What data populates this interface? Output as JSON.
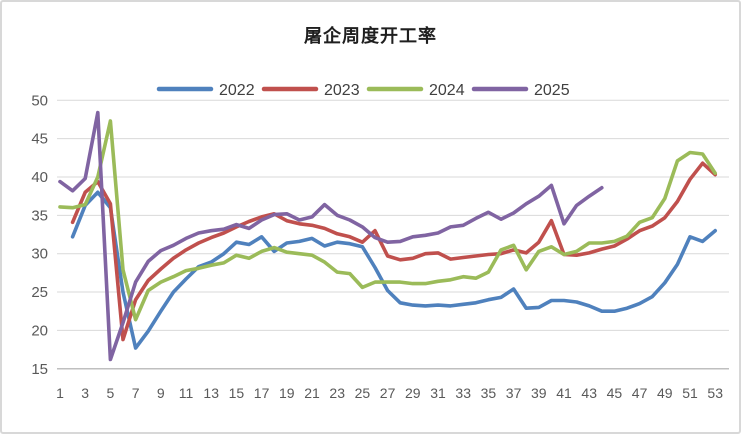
{
  "chart_data": {
    "type": "line",
    "title": "屠企周度开工率",
    "xlabel": "",
    "ylabel": "",
    "ylim": [
      15,
      50
    ],
    "yticks": [
      50,
      45,
      40,
      35,
      30,
      25,
      20,
      15
    ],
    "x_tick_labels": [
      "1",
      "3",
      "5",
      "7",
      "9",
      "11",
      "13",
      "15",
      "17",
      "19",
      "21",
      "23",
      "25",
      "27",
      "29",
      "31",
      "33",
      "35",
      "37",
      "39",
      "41",
      "43",
      "45",
      "47",
      "49",
      "51",
      "53"
    ],
    "x_unit": "week-of-year",
    "x_range": [
      1,
      53
    ],
    "grid": "horizontal",
    "legend_position": "top",
    "axis_text_color": "#595959",
    "series": [
      {
        "name": "2022",
        "color": "#4F81BD",
        "start_week": 2,
        "values": [
          32.2,
          36.3,
          38.0,
          36.0,
          25.0,
          17.7,
          19.9,
          22.5,
          25.0,
          26.7,
          28.3,
          28.9,
          30.0,
          31.5,
          31.2,
          32.2,
          30.3,
          31.4,
          31.6,
          32.0,
          31.0,
          31.5,
          31.3,
          30.9,
          28.2,
          25.2,
          23.6,
          23.3,
          23.2,
          23.3,
          23.2,
          23.4,
          23.6,
          24.0,
          24.3,
          25.4,
          22.9,
          23.0,
          23.9,
          23.9,
          23.7,
          23.2,
          22.5,
          22.5,
          22.9,
          23.5,
          24.4,
          26.2,
          28.6,
          32.2,
          31.6,
          33.0
        ]
      },
      {
        "name": "2023",
        "color": "#C0504D",
        "start_week": 2,
        "values": [
          34.1,
          38.0,
          39.4,
          36.5,
          18.8,
          24.0,
          26.5,
          28.0,
          29.4,
          30.5,
          31.4,
          32.1,
          32.7,
          33.5,
          34.2,
          34.8,
          35.2,
          34.3,
          33.9,
          33.7,
          33.3,
          32.6,
          32.2,
          31.5,
          33.0,
          29.7,
          29.2,
          29.4,
          30.0,
          30.1,
          29.3,
          29.5,
          29.7,
          29.9,
          30.0,
          30.5,
          30.1,
          31.5,
          34.3,
          29.9,
          29.8,
          30.1,
          30.6,
          31.0,
          31.9,
          33.0,
          33.6,
          34.7,
          36.8,
          39.7,
          41.8,
          40.3
        ]
      },
      {
        "name": "2024",
        "color": "#9BBB59",
        "start_week": 1,
        "values": [
          36.1,
          36.0,
          36.4,
          40.0,
          47.3,
          27.9,
          21.4,
          25.2,
          26.3,
          27.0,
          27.8,
          28.1,
          28.5,
          28.8,
          29.8,
          29.4,
          30.3,
          30.8,
          30.2,
          30.0,
          29.8,
          28.9,
          27.6,
          27.4,
          25.6,
          26.3,
          26.3,
          26.3,
          26.1,
          26.1,
          26.4,
          26.6,
          27.0,
          26.8,
          27.6,
          30.5,
          31.1,
          27.9,
          30.3,
          30.9,
          29.9,
          30.3,
          31.4,
          31.4,
          31.6,
          32.3,
          34.1,
          34.7,
          37.2,
          42.1,
          43.2,
          43.0,
          40.5
        ]
      },
      {
        "name": "2025",
        "color": "#8064A2",
        "start_week": 1,
        "values": [
          39.4,
          38.2,
          39.8,
          48.4,
          16.2,
          21.0,
          26.3,
          29.0,
          30.4,
          31.1,
          32.0,
          32.7,
          33.0,
          33.2,
          33.8,
          33.3,
          34.4,
          35.1,
          35.2,
          34.4,
          34.8,
          36.4,
          35.0,
          34.4,
          33.5,
          32.1,
          31.5,
          31.6,
          32.2,
          32.4,
          32.7,
          33.5,
          33.7,
          34.6,
          35.4,
          34.5,
          35.3,
          36.5,
          37.5,
          38.9,
          33.9,
          36.3,
          37.5,
          38.6
        ]
      }
    ]
  }
}
